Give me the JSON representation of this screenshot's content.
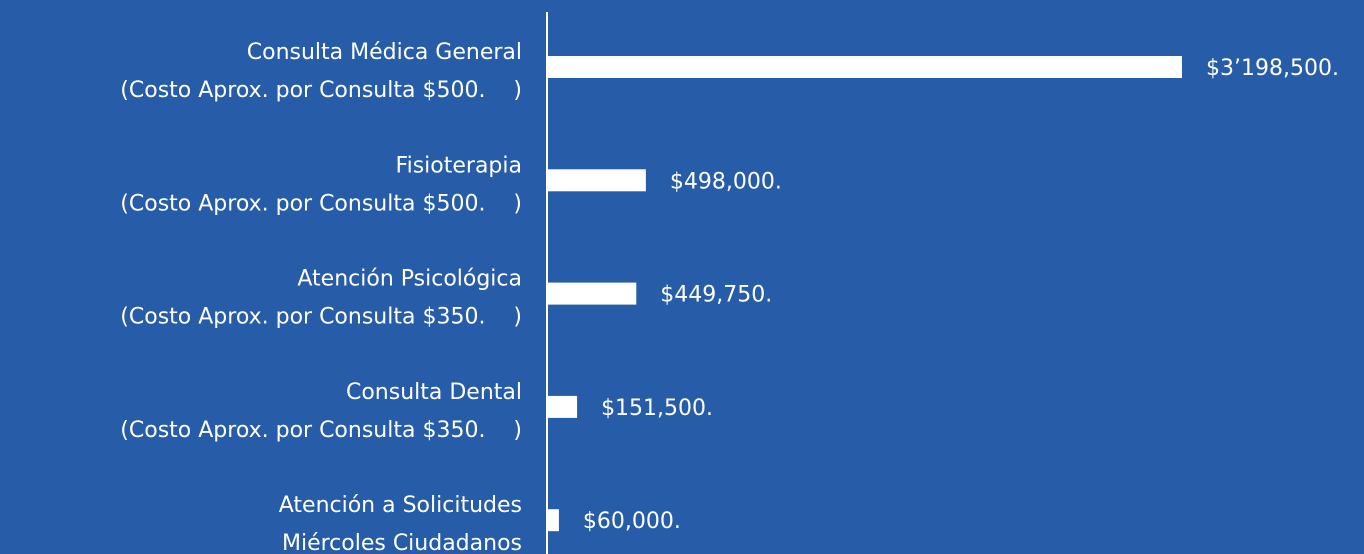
{
  "chart_data": {
    "type": "bar",
    "orientation": "horizontal",
    "color": "#ffffff",
    "categories": [
      [
        "Consulta Médica General",
        "(Costo Aprox. por Consulta $500.    )"
      ],
      [
        "Fisioterapia",
        "(Costo Aprox. por Consulta $500.    )"
      ],
      [
        "Atención Psicológica",
        "(Costo Aprox. por Consulta $350.    )"
      ],
      [
        "Consulta Dental",
        "(Costo Aprox. por Consulta $350.    )"
      ],
      [
        "Atención a Solicitudes",
        "Miércoles Ciudadanos"
      ]
    ],
    "values": [
      3198500,
      498000,
      449750,
      151500,
      60000
    ],
    "value_labels": [
      "$3’198,500.",
      "$498,000.",
      "$449,750.",
      "$151,500.",
      "$60,000."
    ]
  }
}
